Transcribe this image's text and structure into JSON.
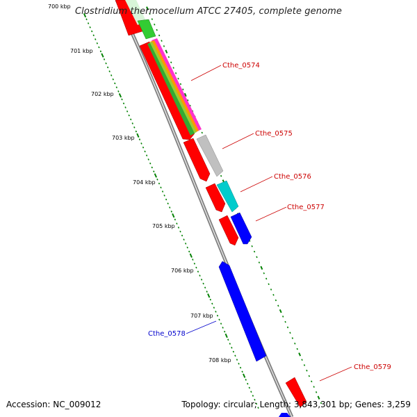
{
  "header": {
    "title": "Clostridium thermocellum ATCC 27405, complete genome"
  },
  "footer": {
    "accession": "Accession: NC_009012",
    "topology": "Topology: circular; Length: 3,843,301 bp; Genes: 3,259"
  },
  "scale_ticks": [
    "700 kbp",
    "701 kbp",
    "702 kbp",
    "703 kbp",
    "704 kbp",
    "705 kbp",
    "706 kbp",
    "707 kbp",
    "708 kbp"
  ],
  "gene_labels": [
    {
      "name": "Cthe_0574",
      "color": "#cc0000"
    },
    {
      "name": "Cthe_0575",
      "color": "#cc0000"
    },
    {
      "name": "Cthe_0576",
      "color": "#cc0000"
    },
    {
      "name": "Cthe_0577",
      "color": "#cc0000"
    },
    {
      "name": "Cthe_0578",
      "color": "#0000cc"
    },
    {
      "name": "Cthe_0579",
      "color": "#cc0000"
    }
  ],
  "colors": {
    "red_gene": "#ff0000",
    "blue_gene": "#0000ff",
    "cyan_gene": "#00cccc",
    "grey_gene": "#c0c0c0",
    "green_gene": "#33cc33",
    "pink_gene": "#ff33cc",
    "backbone": "#808080",
    "tick": "#008000"
  }
}
